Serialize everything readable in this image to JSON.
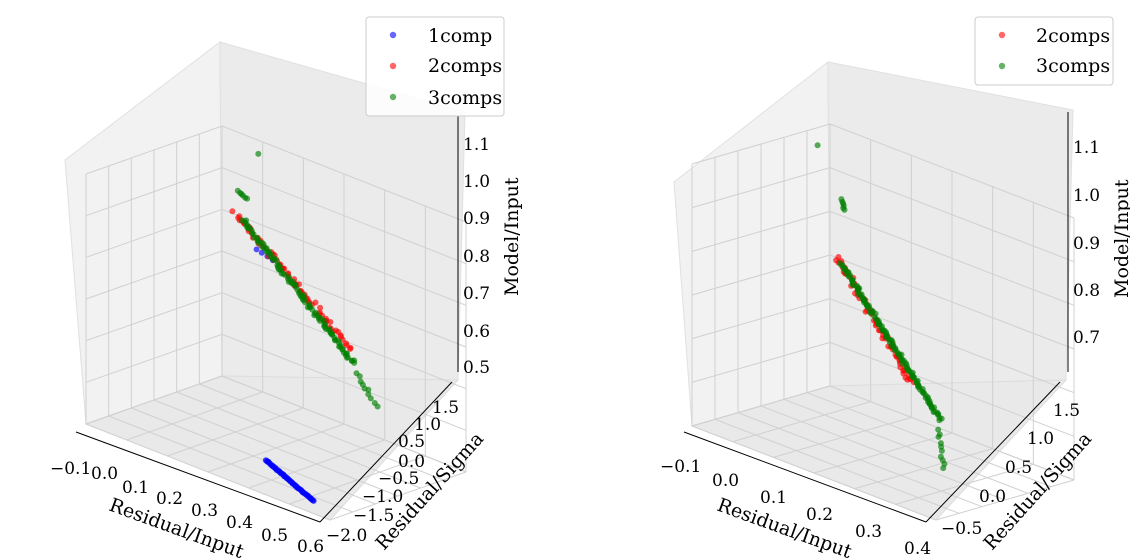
{
  "chart_data": [
    {
      "type": "scatter3d",
      "xlabel": "Residual/Input",
      "ylabel": "Residual/Sigma",
      "zlabel": "Model/Input",
      "x_ticks": [
        "−0.1",
        "0.0",
        "0.1",
        "0.2",
        "0.3",
        "0.4",
        "0.5",
        "0.6"
      ],
      "y_ticks": [
        "−2.0",
        "−1.5",
        "−1.0",
        "−0.5",
        "0.0",
        "0.5",
        "1.0",
        "1.5"
      ],
      "z_ticks": [
        "0.5",
        "0.6",
        "0.7",
        "0.8",
        "0.9",
        "1.0",
        "1.1"
      ],
      "xlim": [
        -0.12,
        0.62
      ],
      "ylim": [
        -2.2,
        1.9
      ],
      "zlim": [
        0.48,
        1.15
      ],
      "legend": [
        "1comp",
        "2comps",
        "3comps"
      ],
      "series": [
        {
          "name": "1comp",
          "color": "#0000ff",
          "clusters": [
            {
              "from": [
                0.02,
                1.55,
                0.88
              ],
              "to": [
                0.06,
                1.65,
                0.86
              ],
              "n": 4,
              "jitter": 0.004
            },
            {
              "from": [
                0.33,
                -1.25,
                0.51
              ],
              "to": [
                0.55,
                -2.0,
                0.5
              ],
              "n": 60,
              "jitter": 0.003
            }
          ]
        },
        {
          "name": "2comps",
          "color": "#ff0000",
          "clusters": [
            {
              "from": [
                0.05,
                0.6,
                1.02
              ],
              "to": [
                0.48,
                -0.2,
                0.83
              ],
              "n": 70,
              "jitter": 0.02
            }
          ]
        },
        {
          "name": "3comps",
          "color": "#008000",
          "clusters": [
            {
              "from": [
                0.0,
                1.8,
                1.12
              ],
              "to": [
                0.02,
                1.75,
                1.12
              ],
              "n": 1,
              "jitter": 0.0
            },
            {
              "from": [
                0.03,
                0.9,
                1.06
              ],
              "to": [
                0.06,
                0.85,
                1.05
              ],
              "n": 6,
              "jitter": 0.004
            },
            {
              "from": [
                0.08,
                0.55,
                1.01
              ],
              "to": [
                0.5,
                -0.3,
                0.8
              ],
              "n": 110,
              "jitter": 0.015
            },
            {
              "from": [
                0.52,
                -0.4,
                0.78
              ],
              "to": [
                0.6,
                -0.6,
                0.73
              ],
              "n": 10,
              "jitter": 0.012
            }
          ]
        }
      ]
    },
    {
      "type": "scatter3d",
      "xlabel": "Residual/Input",
      "ylabel": "Residual/Sigma",
      "zlabel": "Model/Input",
      "x_ticks": [
        "−0.1",
        "0.0",
        "0.1",
        "0.2",
        "0.3",
        "0.4"
      ],
      "y_ticks": [
        "−0.5",
        "0.0",
        "0.5",
        "1.0",
        "1.5"
      ],
      "z_ticks": [
        "0.7",
        "0.8",
        "0.9",
        "1.0",
        "1.1"
      ],
      "xlim": [
        -0.12,
        0.42
      ],
      "ylim": [
        -0.65,
        1.8
      ],
      "zlim": [
        0.62,
        1.16
      ],
      "legend": [
        "2comps",
        "3comps"
      ],
      "series": [
        {
          "name": "2comps",
          "color": "#ff0000",
          "clusters": [
            {
              "from": [
                0.07,
                0.4,
                1.0
              ],
              "to": [
                0.3,
                -0.1,
                0.84
              ],
              "n": 70,
              "jitter": 0.02
            }
          ]
        },
        {
          "name": "3comps",
          "color": "#008000",
          "clusters": [
            {
              "from": [
                -0.11,
                1.5,
                1.13
              ],
              "to": [
                -0.1,
                1.5,
                1.13
              ],
              "n": 1,
              "jitter": 0.0
            },
            {
              "from": [
                -0.02,
                1.2,
                1.06
              ],
              "to": [
                0.0,
                1.1,
                1.05
              ],
              "n": 6,
              "jitter": 0.006
            },
            {
              "from": [
                0.08,
                0.4,
                0.99
              ],
              "to": [
                0.38,
                -0.25,
                0.8
              ],
              "n": 130,
              "jitter": 0.012
            },
            {
              "from": [
                0.38,
                -0.3,
                0.78
              ],
              "to": [
                0.42,
                -0.5,
                0.72
              ],
              "n": 10,
              "jitter": 0.01
            }
          ]
        }
      ]
    }
  ]
}
